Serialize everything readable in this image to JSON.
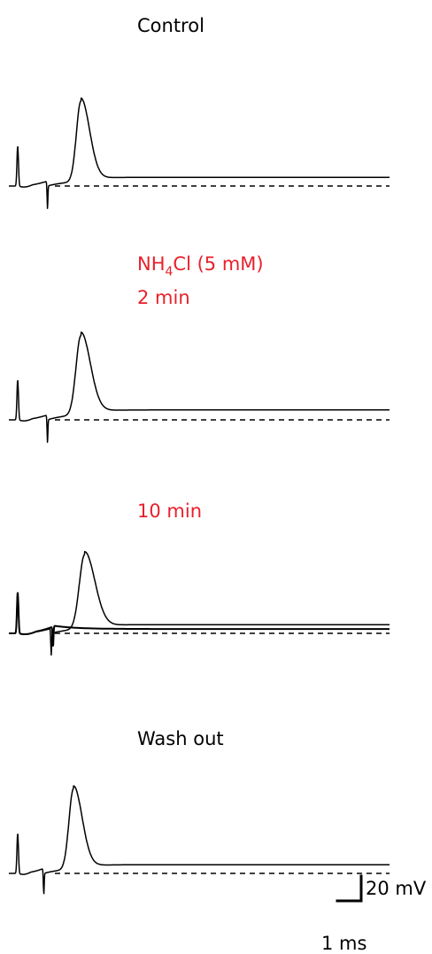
{
  "chart_data": {
    "type": "line",
    "panels": [
      {
        "labels": [
          "Control"
        ],
        "label_color": "#000000",
        "baseline_mV": 0,
        "traces": [
          {
            "shape": "spike",
            "stim_ms": -2.0,
            "stim_mV": 32,
            "dip_mV": -1,
            "ap_onset_ms": -1.2,
            "ap_peak_ms": -0.3,
            "ap_peak_mV": 65,
            "ap_width_ms": 0.22,
            "plateau_mV": 7
          }
        ]
      },
      {
        "labels": [
          "NH4Cl (5 mM)",
          "2 min"
        ],
        "label_color": "#e8202a",
        "baseline_mV": 0,
        "traces": [
          {
            "shape": "spike",
            "stim_ms": -2.0,
            "stim_mV": 32,
            "dip_mV": -1,
            "ap_onset_ms": -1.2,
            "ap_peak_ms": -0.3,
            "ap_peak_mV": 64,
            "ap_width_ms": 0.24,
            "plateau_mV": 8
          }
        ]
      },
      {
        "labels": [
          "10 min"
        ],
        "label_color": "#e8202a",
        "baseline_mV": 0,
        "traces": [
          {
            "shape": "spike",
            "stim_ms": -2.0,
            "stim_mV": 33,
            "dip_mV": -1,
            "ap_onset_ms": -1.1,
            "ap_peak_ms": -0.2,
            "ap_peak_mV": 60,
            "ap_width_ms": 0.26,
            "plateau_mV": 7
          },
          {
            "shape": "failure",
            "stim_ms": -2.0,
            "stim_mV": 33,
            "dip_mV": -1,
            "hump_ms": -1.0,
            "hump_mV": 6,
            "plateau_mV": 3.5
          }
        ]
      },
      {
        "labels": [
          "Wash out"
        ],
        "label_color": "#000000",
        "baseline_mV": 0,
        "traces": [
          {
            "shape": "spike",
            "stim_ms": -2.0,
            "stim_mV": 32,
            "dip_mV": -1,
            "ap_onset_ms": -1.3,
            "ap_peak_ms": -0.5,
            "ap_peak_mV": 65,
            "ap_width_ms": 0.22,
            "plateau_mV": 7
          }
        ]
      }
    ],
    "scale_bar": {
      "voltage_label": "20 mV",
      "time_label": "1 ms",
      "voltage_mV": 20,
      "time_ms": 1
    },
    "axes": {
      "visible": false
    },
    "baseline_style": "dashed"
  }
}
